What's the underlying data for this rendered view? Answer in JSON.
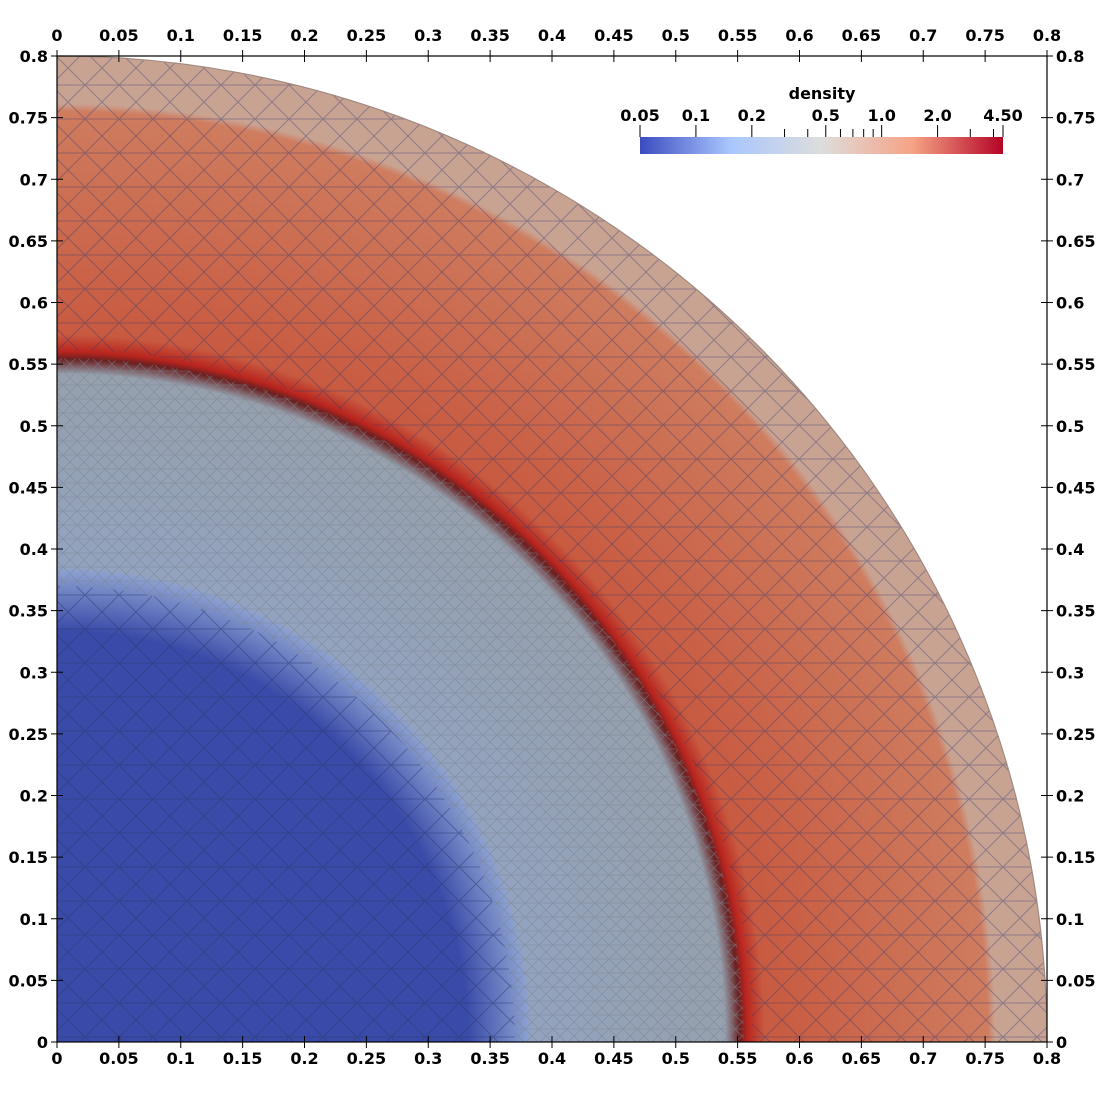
{
  "chart_data": {
    "type": "heatmap",
    "title": "",
    "xlabel": "",
    "ylabel": "",
    "xlim": [
      0,
      0.8
    ],
    "ylim": [
      0,
      0.8
    ],
    "x_ticks": [
      "0",
      "0.05",
      "0.1",
      "0.15",
      "0.2",
      "0.25",
      "0.3",
      "0.35",
      "0.4",
      "0.45",
      "0.5",
      "0.55",
      "0.6",
      "0.65",
      "0.7",
      "0.75",
      "0.8"
    ],
    "y_ticks": [
      "0",
      "0.05",
      "0.1",
      "0.15",
      "0.2",
      "0.25",
      "0.3",
      "0.35",
      "0.4",
      "0.45",
      "0.5",
      "0.55",
      "0.6",
      "0.65",
      "0.7",
      "0.75",
      "0.8"
    ],
    "colorbar": {
      "title": "density",
      "scale": "log",
      "range": [
        0.05,
        4.5
      ],
      "tick_labels": [
        "0.05",
        "0.1",
        "0.2",
        "0.5",
        "1.0",
        "2.0",
        "4.50"
      ],
      "tick_values": [
        0.05,
        0.1,
        0.2,
        0.5,
        1.0,
        2.0,
        4.5
      ],
      "minor_tick_values": [
        0.3,
        0.4,
        0.6,
        0.7,
        0.8,
        0.9,
        3.0,
        4.0
      ],
      "colors": [
        "#3b4cc0",
        "#aac7fd",
        "#dddddd",
        "#f6a385",
        "#b40426"
      ]
    },
    "field": {
      "geometry": "quarter-disk",
      "outer_radius": 0.8,
      "regions": [
        {
          "r_min": 0.0,
          "r_max": 0.36,
          "density": 0.06
        },
        {
          "r_min": 0.38,
          "r_max": 0.553,
          "density": 0.32
        },
        {
          "r_min": 0.553,
          "r_max": 0.562,
          "density": 4.5
        },
        {
          "r_min": 0.562,
          "r_max": 0.75,
          "density": 1.6
        },
        {
          "r_min": 0.75,
          "r_max": 0.8,
          "density": 0.95
        }
      ]
    }
  }
}
